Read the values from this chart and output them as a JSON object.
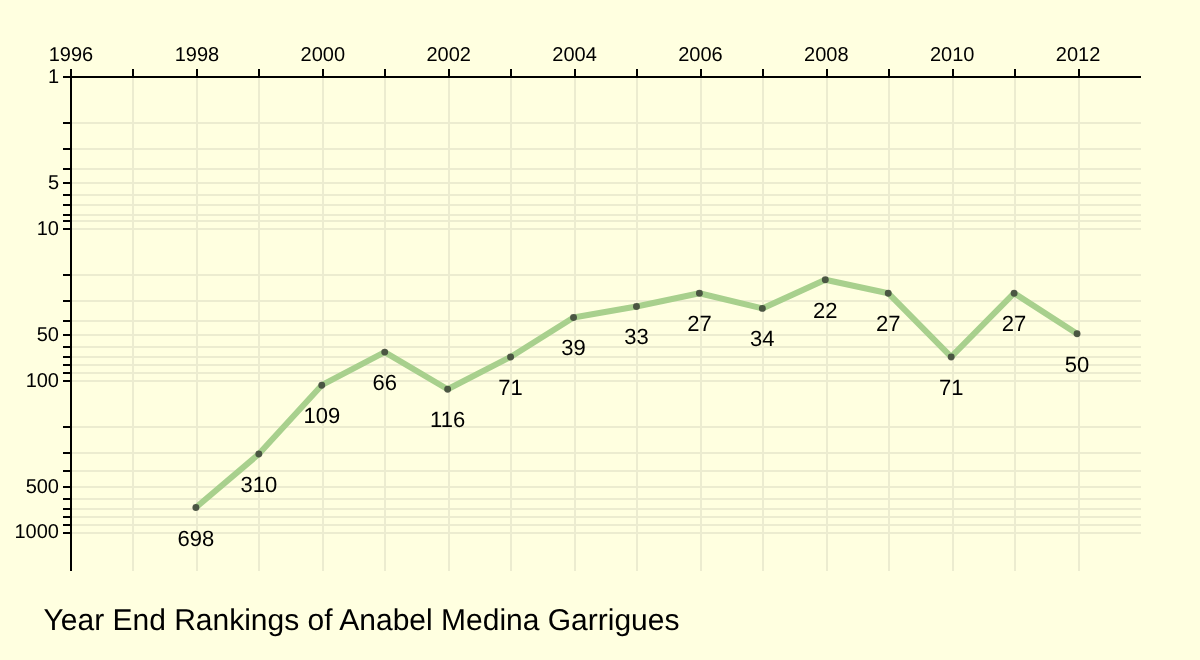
{
  "chart_data": {
    "type": "line",
    "title": "Year End Rankings of Anabel Medina Garrigues",
    "x": [
      1998,
      1999,
      2000,
      2001,
      2002,
      2003,
      2004,
      2005,
      2006,
      2007,
      2008,
      2009,
      2010,
      2011,
      2012
    ],
    "series": [
      {
        "color": "#a8d08d",
        "values": [
          698,
          310,
          109,
          66,
          116,
          71,
          39,
          33,
          27,
          34,
          22,
          27,
          71,
          27,
          50
        ]
      }
    ],
    "xlim": [
      1996,
      2013
    ],
    "xticks": [
      1996,
      {
        "value": 1997,
        "label": null
      },
      1998,
      {
        "value": 1999,
        "label": null
      },
      2000,
      {
        "value": 2001,
        "label": null
      },
      2002,
      {
        "value": 2003,
        "label": null
      },
      2004,
      {
        "value": 2005,
        "label": null
      },
      2006,
      {
        "value": 2007,
        "label": null
      },
      2008,
      {
        "value": 2009,
        "label": null
      },
      2010,
      {
        "value": 2011,
        "label": null
      },
      2012
    ],
    "ylim": [
      1800,
      1
    ],
    "yticks": [
      1,
      {
        "value": 2,
        "label": null
      },
      {
        "value": 3,
        "label": null
      },
      {
        "value": 4,
        "label": null
      },
      5,
      {
        "value": 6,
        "label": null
      },
      {
        "value": 7,
        "label": null
      },
      {
        "value": 8,
        "label": null
      },
      {
        "value": 9,
        "label": null
      },
      10,
      {
        "value": 20,
        "label": null
      },
      {
        "value": 30,
        "label": null
      },
      {
        "value": 40,
        "label": null
      },
      50,
      {
        "value": 60,
        "label": null
      },
      {
        "value": 70,
        "label": null
      },
      {
        "value": 80,
        "label": null
      },
      {
        "value": 90,
        "label": null
      },
      100,
      {
        "value": 200,
        "label": null
      },
      {
        "value": 300,
        "label": null
      },
      {
        "value": 400,
        "label": null
      },
      500,
      {
        "value": 600,
        "label": null
      },
      {
        "value": 700,
        "label": null
      },
      {
        "value": 800,
        "label": null
      },
      {
        "value": 900,
        "label": null
      },
      1000
    ],
    "log": "y",
    "grid": true,
    "marker": "circle",
    "data_labels": true
  }
}
